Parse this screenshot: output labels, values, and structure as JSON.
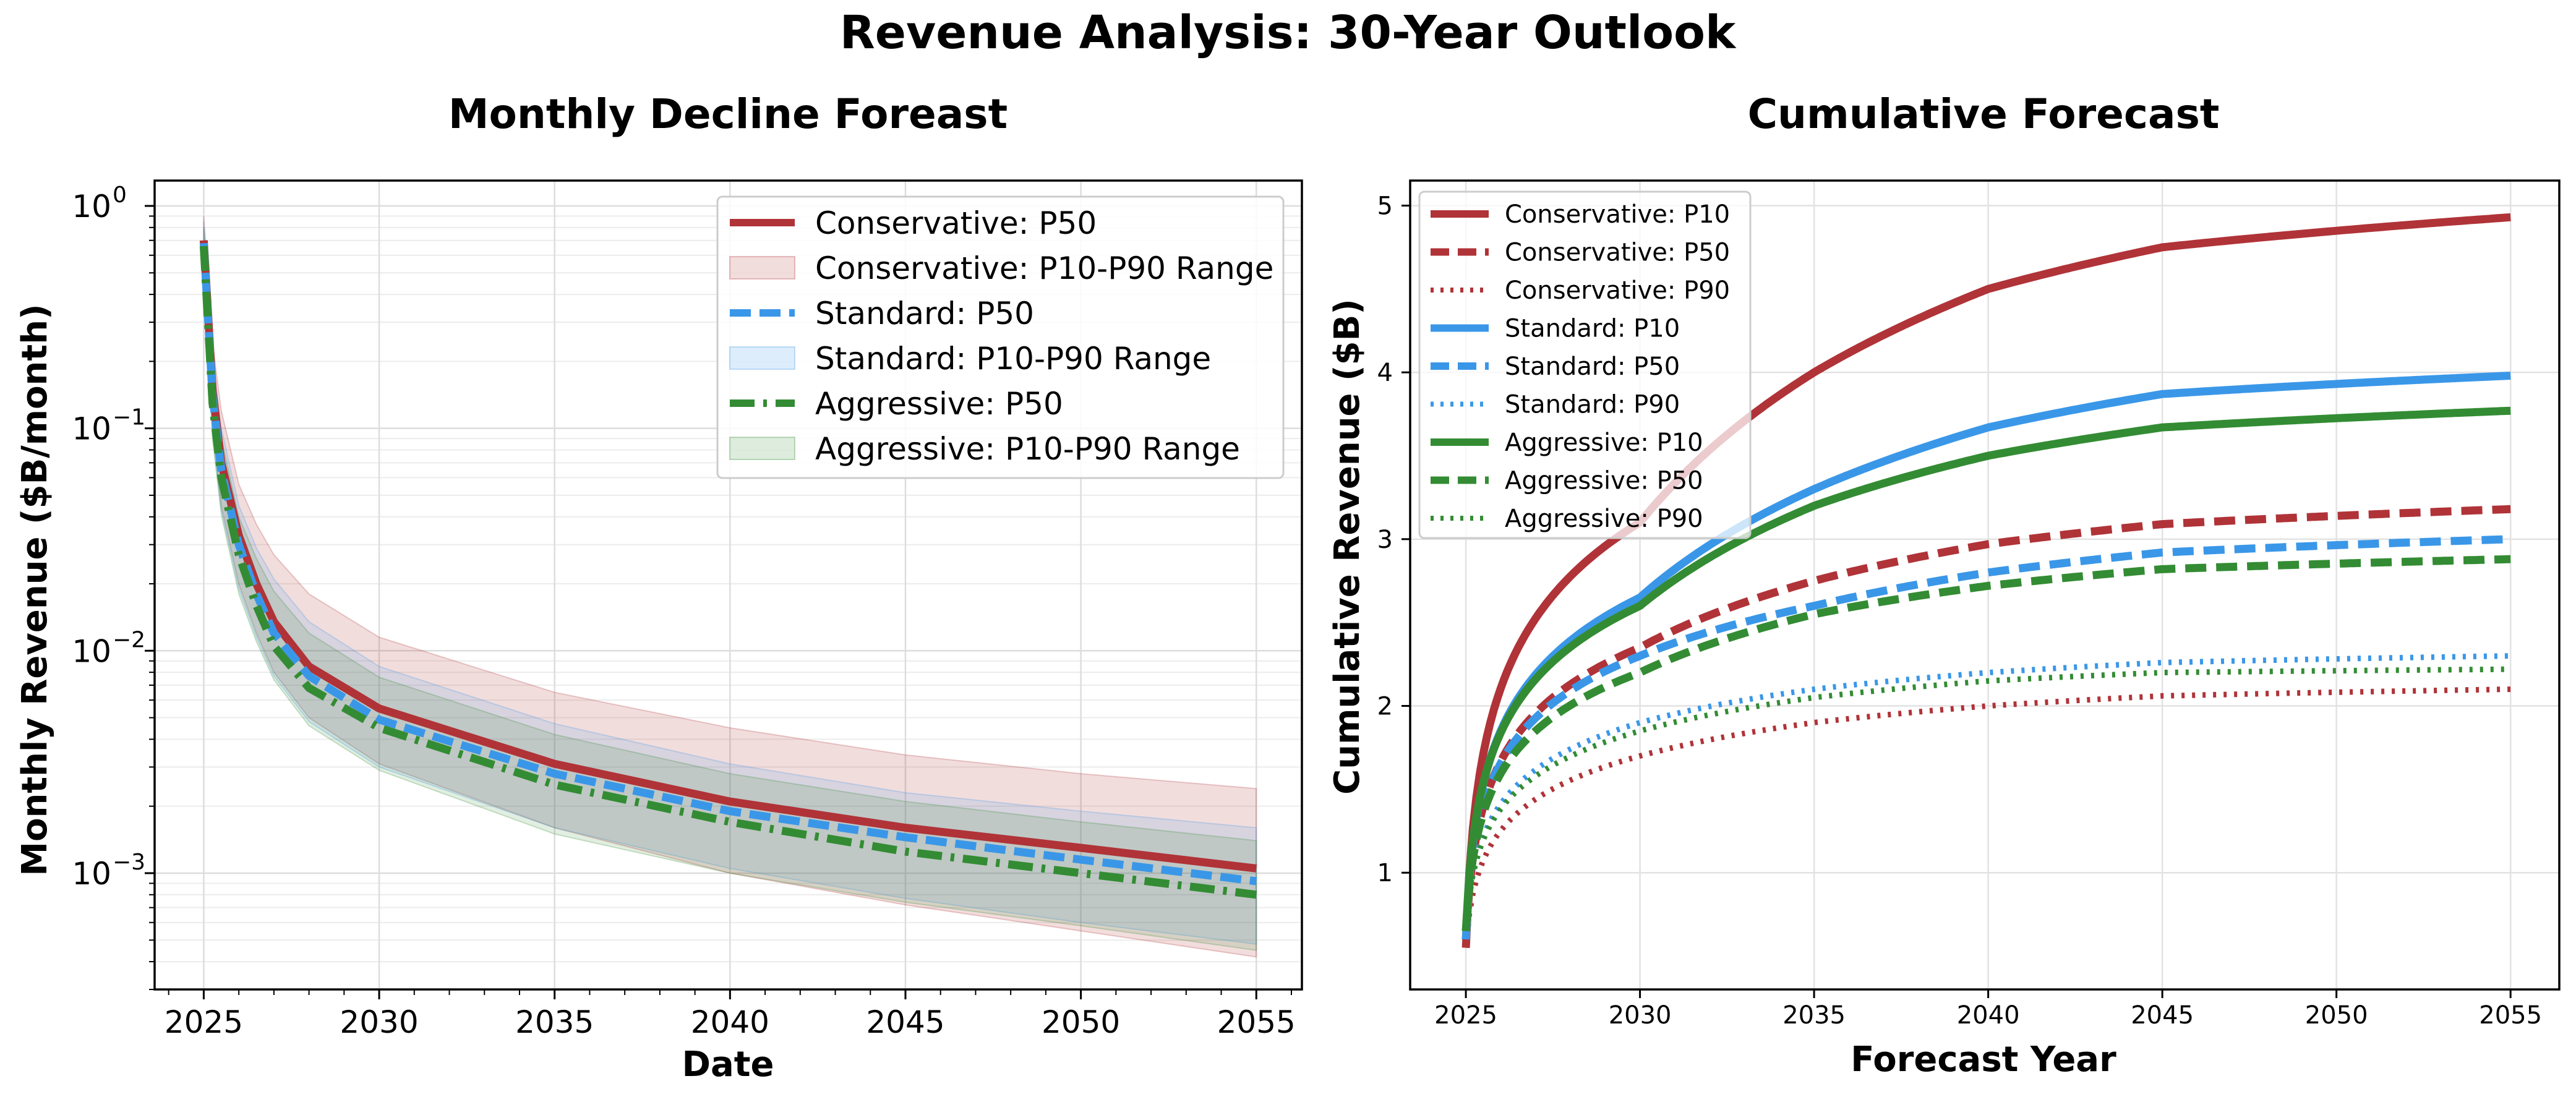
{
  "figure": {
    "title": "Revenue Analysis: 30-Year Outlook"
  },
  "colors": {
    "conservative": "#b03338",
    "standard": "#3a97e8",
    "aggressive": "#338c33"
  },
  "chart_data": [
    {
      "type": "line",
      "title": "Monthly Decline Foreast",
      "xlabel": "Date",
      "ylabel": "Monthly Revenue ($B/month)",
      "y_scale": "log",
      "xlim": [
        2023.6,
        2056.3
      ],
      "ylim": [
        0.0003,
        1.3
      ],
      "xticks": [
        2025,
        2030,
        2035,
        2040,
        2045,
        2050,
        2055
      ],
      "yticks": [
        {
          "value": 0.001,
          "label": "10",
          "exp": "−3"
        },
        {
          "value": 0.01,
          "label": "10",
          "exp": "−2"
        },
        {
          "value": 0.1,
          "label": "10",
          "exp": "−1"
        },
        {
          "value": 1,
          "label": "10",
          "exp": "0"
        }
      ],
      "grid": true,
      "legend_position": "top-right",
      "x": [
        2025,
        2025.25,
        2025.5,
        2026,
        2026.5,
        2027,
        2028,
        2030,
        2035,
        2040,
        2045,
        2050,
        2055
      ],
      "series": [
        {
          "name": "Conservative: P50",
          "style": "solid",
          "color_key": "conservative",
          "values": [
            0.7,
            0.15,
            0.07,
            0.033,
            0.02,
            0.0135,
            0.0085,
            0.0055,
            0.0031,
            0.0021,
            0.0016,
            0.0013,
            0.00105
          ]
        },
        {
          "name": "Standard: P50",
          "style": "dashed",
          "color_key": "standard",
          "values": [
            0.68,
            0.14,
            0.065,
            0.03,
            0.018,
            0.012,
            0.0077,
            0.0049,
            0.0028,
            0.0019,
            0.00145,
            0.00115,
            0.00092
          ]
        },
        {
          "name": "Aggressive: P50",
          "style": "dashdot",
          "color_key": "aggressive",
          "values": [
            0.66,
            0.13,
            0.06,
            0.027,
            0.016,
            0.0105,
            0.0068,
            0.0045,
            0.0025,
            0.0017,
            0.00125,
            0.001,
            0.0008
          ]
        }
      ],
      "bands": [
        {
          "name": "Conservative: P10-P90 Range",
          "color_key": "conservative",
          "low": [
            0.5,
            0.1,
            0.045,
            0.02,
            0.012,
            0.008,
            0.005,
            0.0031,
            0.0016,
            0.001,
            0.00072,
            0.00055,
            0.00042
          ],
          "high": [
            0.9,
            0.24,
            0.12,
            0.056,
            0.037,
            0.027,
            0.018,
            0.0115,
            0.0065,
            0.0045,
            0.0034,
            0.0028,
            0.0024
          ]
        },
        {
          "name": "Standard: P10-P90 Range",
          "color_key": "standard",
          "low": [
            0.48,
            0.095,
            0.043,
            0.019,
            0.0115,
            0.0077,
            0.0048,
            0.003,
            0.0016,
            0.00105,
            0.00077,
            0.0006,
            0.00048
          ]
        },
        {
          "name": "Aggressive: P10-P90 Range",
          "color_key": "aggressive",
          "low": [
            0.47,
            0.09,
            0.041,
            0.018,
            0.011,
            0.0074,
            0.0046,
            0.0029,
            0.0015,
            0.001,
            0.00074,
            0.00058,
            0.00045
          ]
        }
      ],
      "band_highs": {
        "standard": [
          0.85,
          0.2,
          0.1,
          0.045,
          0.029,
          0.021,
          0.0135,
          0.0085,
          0.0047,
          0.0031,
          0.0023,
          0.0019,
          0.0016
        ],
        "aggressive": [
          0.8,
          0.18,
          0.09,
          0.04,
          0.026,
          0.0185,
          0.012,
          0.0076,
          0.0042,
          0.0028,
          0.0021,
          0.0017,
          0.0014
        ]
      }
    },
    {
      "type": "line",
      "title": "Cumulative Forecast",
      "xlabel": "Forecast Year",
      "ylabel": "Cumulative Revenue ($B)",
      "xlim": [
        2023.4,
        2056.4
      ],
      "ylim": [
        0.3,
        5.15
      ],
      "xticks": [
        2025,
        2030,
        2035,
        2040,
        2045,
        2050,
        2055
      ],
      "yticks": [
        1,
        2,
        3,
        4,
        5
      ],
      "grid": true,
      "legend_position": "top-left",
      "series": [
        {
          "name": "Conservative: P10",
          "style": "solid",
          "color_key": "conservative",
          "anchors": [
            0.55,
            3.1,
            4.0,
            4.5,
            4.75,
            4.93
          ]
        },
        {
          "name": "Conservative: P50",
          "style": "dashed",
          "color_key": "conservative",
          "anchors": [
            0.6,
            2.35,
            2.75,
            2.97,
            3.09,
            3.18
          ]
        },
        {
          "name": "Conservative: P90",
          "style": "dotted",
          "color_key": "conservative",
          "anchors": [
            0.55,
            1.7,
            1.9,
            2.0,
            2.06,
            2.1
          ]
        },
        {
          "name": "Standard: P10",
          "style": "solid",
          "color_key": "standard",
          "anchors": [
            0.6,
            2.65,
            3.3,
            3.67,
            3.87,
            3.98
          ]
        },
        {
          "name": "Standard: P50",
          "style": "dashed",
          "color_key": "standard",
          "anchors": [
            0.65,
            2.3,
            2.6,
            2.8,
            2.92,
            3.0
          ]
        },
        {
          "name": "Standard: P90",
          "style": "dotted",
          "color_key": "standard",
          "anchors": [
            0.65,
            1.9,
            2.1,
            2.2,
            2.26,
            2.3
          ]
        },
        {
          "name": "Aggressive: P10",
          "style": "solid",
          "color_key": "aggressive",
          "anchors": [
            0.65,
            2.6,
            3.2,
            3.5,
            3.67,
            3.77
          ]
        },
        {
          "name": "Aggressive: P50",
          "style": "dashed",
          "color_key": "aggressive",
          "anchors": [
            0.65,
            2.2,
            2.55,
            2.72,
            2.82,
            2.88
          ]
        },
        {
          "name": "Aggressive: P90",
          "style": "dotted",
          "color_key": "aggressive",
          "anchors": [
            0.65,
            1.85,
            2.05,
            2.15,
            2.2,
            2.22
          ]
        }
      ],
      "x": [
        2025,
        2030,
        2035,
        2040,
        2045,
        2055
      ]
    }
  ]
}
